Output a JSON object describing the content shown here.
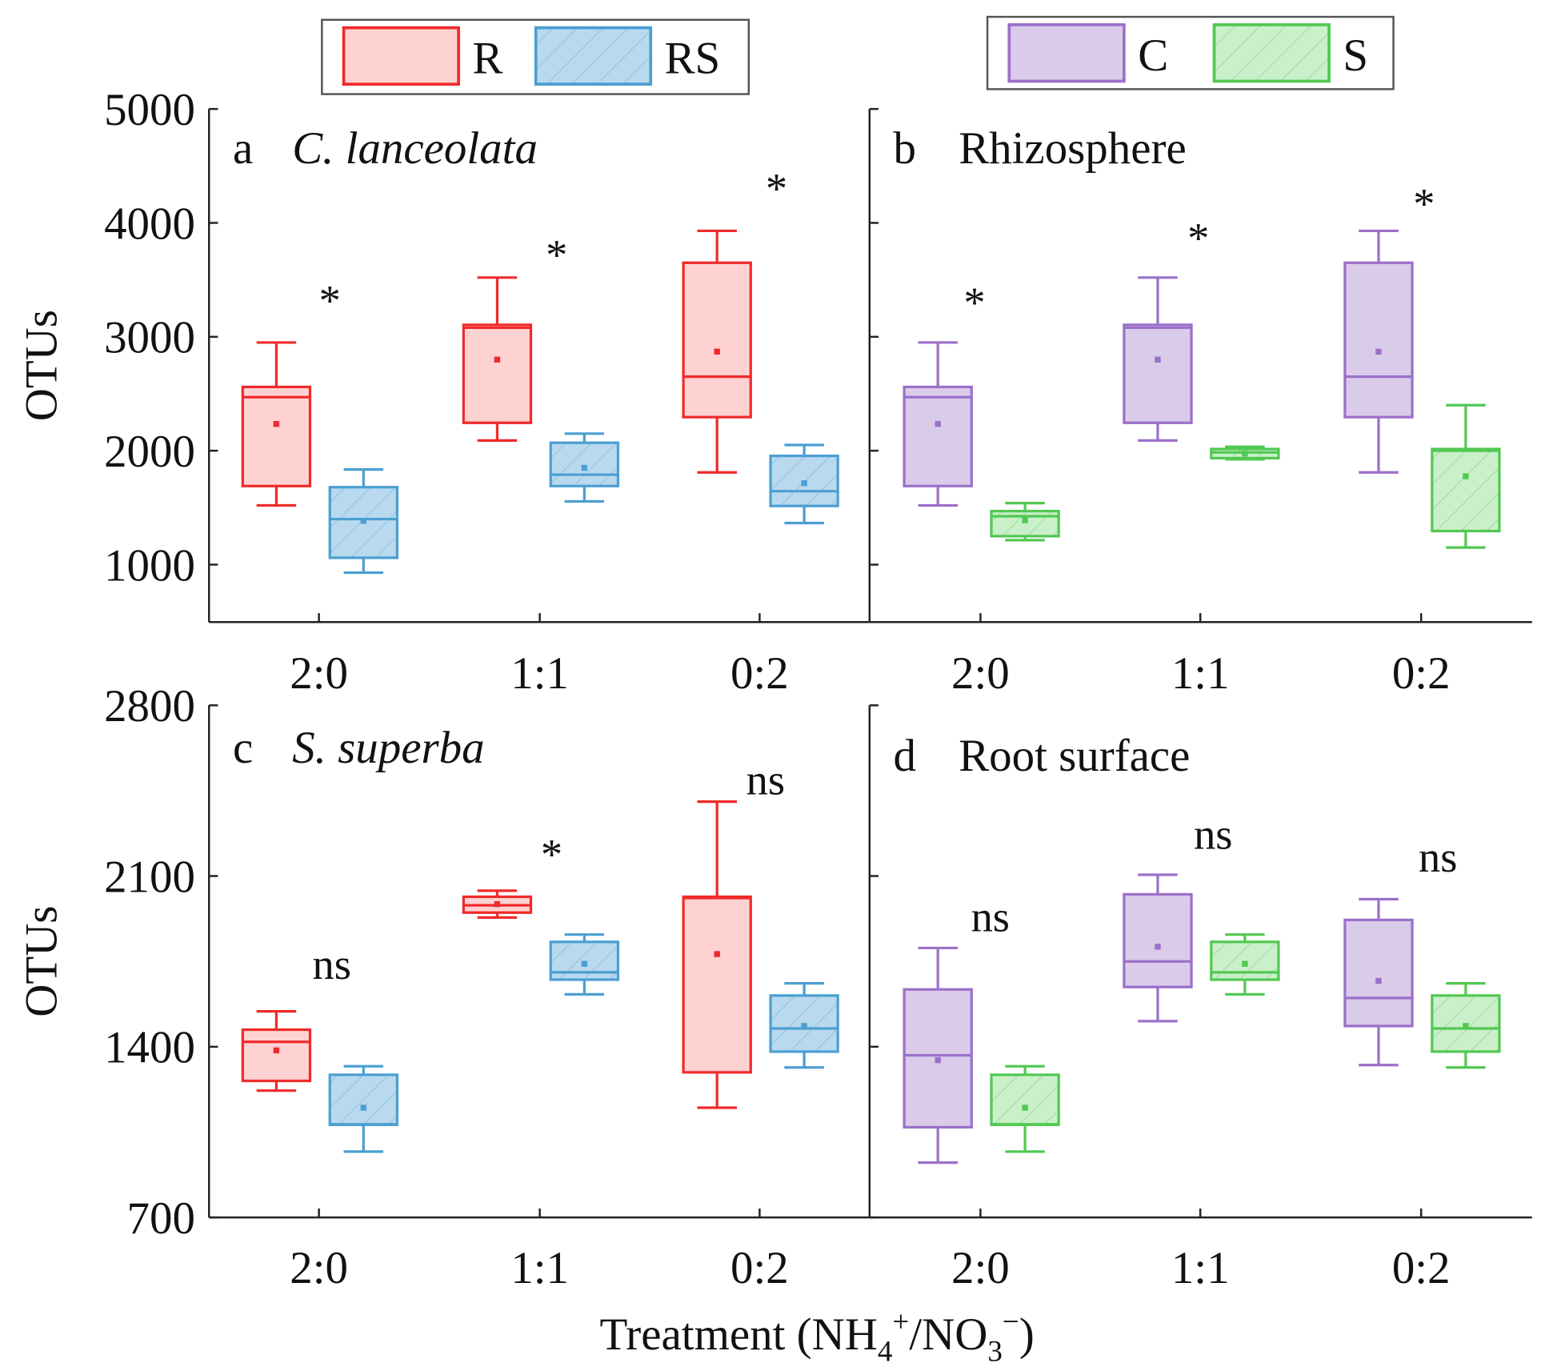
{
  "chart_data": [
    {
      "type": "box",
      "panel": "a",
      "title": "C. lanceolata",
      "title_italic": true,
      "ylabel": "OTUs",
      "ylim": [
        500,
        5000
      ],
      "yticks": [
        1000,
        2000,
        3000,
        4000,
        5000
      ],
      "categories": [
        "2:0",
        "1:1",
        "0:2"
      ],
      "series": [
        {
          "name": "R",
          "stats": [
            {
              "min": 1520,
              "q1": 1690,
              "median": 2470,
              "q3": 2560,
              "max": 2950,
              "mean": 2235
            },
            {
              "min": 2090,
              "q1": 2245,
              "median": 3080,
              "q3": 3105,
              "max": 3520,
              "mean": 2800
            },
            {
              "min": 1810,
              "q1": 2295,
              "median": 2650,
              "q3": 3650,
              "max": 3930,
              "mean": 2870
            }
          ]
        },
        {
          "name": "RS",
          "stats": [
            {
              "min": 930,
              "q1": 1060,
              "median": 1400,
              "q3": 1680,
              "max": 1835,
              "mean": 1385
            },
            {
              "min": 1555,
              "q1": 1690,
              "median": 1790,
              "q3": 2070,
              "max": 2150,
              "mean": 1850
            },
            {
              "min": 1365,
              "q1": 1515,
              "median": 1645,
              "q3": 1955,
              "max": 2050,
              "mean": 1715
            }
          ]
        }
      ],
      "significance": [
        "*",
        "*",
        "*"
      ]
    },
    {
      "type": "box",
      "panel": "b",
      "title": "Rhizosphere",
      "title_italic": false,
      "ylim": [
        500,
        5000
      ],
      "yticks": [
        1000,
        2000,
        3000,
        4000,
        5000
      ],
      "categories": [
        "2:0",
        "1:1",
        "0:2"
      ],
      "series": [
        {
          "name": "C",
          "stats": [
            {
              "min": 1520,
              "q1": 1690,
              "median": 2470,
              "q3": 2560,
              "max": 2950,
              "mean": 2235
            },
            {
              "min": 2090,
              "q1": 2245,
              "median": 3080,
              "q3": 3105,
              "max": 3520,
              "mean": 2800
            },
            {
              "min": 1810,
              "q1": 2295,
              "median": 2650,
              "q3": 3650,
              "max": 3930,
              "mean": 2870
            }
          ]
        },
        {
          "name": "S",
          "stats": [
            {
              "min": 1215,
              "q1": 1250,
              "median": 1425,
              "q3": 1470,
              "max": 1540,
              "mean": 1390
            },
            {
              "min": 1925,
              "q1": 1935,
              "median": 1985,
              "q3": 2015,
              "max": 2035,
              "mean": 1975
            },
            {
              "min": 1150,
              "q1": 1295,
              "median": 2000,
              "q3": 2015,
              "max": 2400,
              "mean": 1775
            }
          ]
        }
      ],
      "significance": [
        "*",
        "*",
        "*"
      ]
    },
    {
      "type": "box",
      "panel": "c",
      "title": "S. superba",
      "title_italic": true,
      "ylabel": "OTUs",
      "ylim": [
        700,
        2800
      ],
      "yticks": [
        700,
        1400,
        2100,
        2800
      ],
      "categories": [
        "2:0",
        "1:1",
        "0:2"
      ],
      "series": [
        {
          "name": "R",
          "stats": [
            {
              "min": 1220,
              "q1": 1260,
              "median": 1420,
              "q3": 1470,
              "max": 1545,
              "mean": 1385
            },
            {
              "min": 1930,
              "q1": 1950,
              "median": 1980,
              "q3": 2015,
              "max": 2040,
              "mean": 1985
            },
            {
              "min": 1150,
              "q1": 1295,
              "median": 2010,
              "q3": 2015,
              "max": 2405,
              "mean": 1780
            }
          ]
        },
        {
          "name": "RS",
          "stats": [
            {
              "min": 970,
              "q1": 1080,
              "median": 1082,
              "q3": 1285,
              "max": 1320,
              "mean": 1150
            },
            {
              "min": 1615,
              "q1": 1675,
              "median": 1705,
              "q3": 1830,
              "max": 1860,
              "mean": 1740
            },
            {
              "min": 1315,
              "q1": 1380,
              "median": 1475,
              "q3": 1610,
              "max": 1660,
              "mean": 1485
            }
          ]
        }
      ],
      "significance": [
        "ns",
        "*",
        "ns"
      ]
    },
    {
      "type": "box",
      "panel": "d",
      "title": "Root surface",
      "title_italic": false,
      "ylim": [
        700,
        2800
      ],
      "yticks": [
        700,
        1400,
        2100,
        2800
      ],
      "categories": [
        "2:0",
        "1:1",
        "0:2"
      ],
      "series": [
        {
          "name": "C",
          "stats": [
            {
              "min": 925,
              "q1": 1070,
              "median": 1365,
              "q3": 1635,
              "max": 1805,
              "mean": 1345
            },
            {
              "min": 1505,
              "q1": 1645,
              "median": 1750,
              "q3": 2025,
              "max": 2105,
              "mean": 1810
            },
            {
              "min": 1325,
              "q1": 1485,
              "median": 1600,
              "q3": 1920,
              "max": 2005,
              "mean": 1670
            }
          ]
        },
        {
          "name": "S",
          "stats": [
            {
              "min": 970,
              "q1": 1080,
              "median": 1082,
              "q3": 1285,
              "max": 1320,
              "mean": 1150
            },
            {
              "min": 1615,
              "q1": 1675,
              "median": 1705,
              "q3": 1830,
              "max": 1860,
              "mean": 1740
            },
            {
              "min": 1315,
              "q1": 1380,
              "median": 1475,
              "q3": 1610,
              "max": 1660,
              "mean": 1485
            }
          ]
        }
      ],
      "significance": [
        "ns",
        "ns",
        "ns"
      ]
    }
  ],
  "legends": [
    {
      "entries": [
        "R",
        "RS"
      ]
    },
    {
      "entries": [
        "C",
        "S"
      ]
    }
  ],
  "xlabel": {
    "main": "Treatment (NH",
    "sub1": "4",
    "sup1": "+",
    "mid": "/NO",
    "sub2": "3",
    "sup2": "−",
    "end": ")"
  },
  "colors": {
    "R": {
      "stroke": "#f02a2a",
      "fill": "#ffd2d2",
      "hatch": false
    },
    "RS": {
      "stroke": "#4b9fd2",
      "fill": "#b9d9ee",
      "hatch": true
    },
    "C": {
      "stroke": "#9b70c9",
      "fill": "#dacbea",
      "hatch": false
    },
    "S": {
      "stroke": "#52c852",
      "fill": "#c9f0c9",
      "hatch": true
    }
  }
}
